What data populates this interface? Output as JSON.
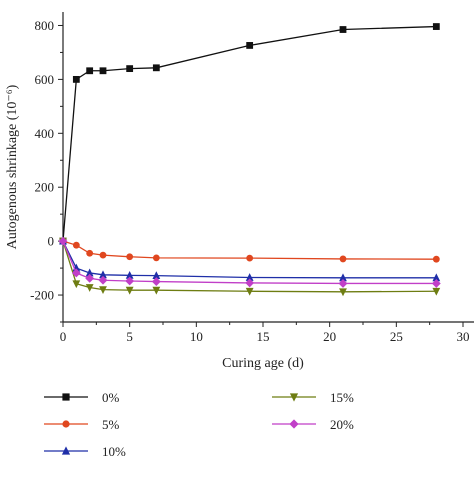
{
  "chart_data": {
    "type": "line",
    "xlabel": "Curing age (d)",
    "ylabel": "Autogenous shrinkage (10⁻⁶)",
    "xlim": [
      0,
      30
    ],
    "ylim": [
      -300,
      850
    ],
    "x_ticks": [
      "0",
      "5",
      "10",
      "15",
      "20",
      "25",
      "30"
    ],
    "y_ticks": [
      "-200",
      "0",
      "200",
      "400",
      "600",
      "800"
    ],
    "x_tick_values": [
      0,
      5,
      10,
      15,
      20,
      25,
      30
    ],
    "y_tick_values": [
      -200,
      0,
      200,
      400,
      600,
      800
    ],
    "grid": false,
    "legend_position": "bottom",
    "series": [
      {
        "name": "0%",
        "color": "#111111",
        "marker": "square",
        "x": [
          0,
          1,
          2,
          3,
          5,
          7,
          14,
          21,
          28
        ],
        "values": [
          0,
          600,
          632,
          632,
          640,
          643,
          726,
          785,
          796
        ]
      },
      {
        "name": "5%",
        "color": "#e0471f",
        "marker": "circle",
        "x": [
          0,
          1,
          2,
          3,
          5,
          7,
          14,
          21,
          28
        ],
        "values": [
          0,
          -15,
          -45,
          -52,
          -58,
          -62,
          -63,
          -66,
          -67
        ]
      },
      {
        "name": "10%",
        "color": "#1f2fa8",
        "marker": "triangle-up",
        "x": [
          0,
          1,
          2,
          3,
          5,
          7,
          14,
          21,
          28
        ],
        "values": [
          0,
          -100,
          -118,
          -125,
          -127,
          -128,
          -135,
          -136,
          -136
        ]
      },
      {
        "name": "15%",
        "color": "#6e7d12",
        "marker": "triangle-down",
        "x": [
          0,
          1,
          2,
          3,
          5,
          7,
          14,
          21,
          28
        ],
        "values": [
          0,
          -158,
          -172,
          -180,
          -182,
          -182,
          -186,
          -188,
          -186
        ]
      },
      {
        "name": "20%",
        "color": "#c13fc8",
        "marker": "diamond",
        "x": [
          0,
          1,
          2,
          3,
          5,
          7,
          14,
          21,
          28
        ],
        "values": [
          0,
          -118,
          -138,
          -145,
          -148,
          -150,
          -155,
          -157,
          -157
        ]
      }
    ]
  }
}
